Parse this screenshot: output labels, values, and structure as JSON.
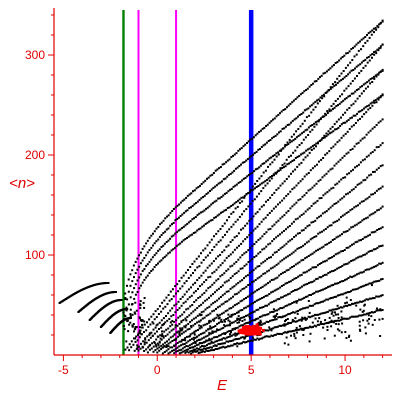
{
  "chart_data": {
    "type": "scatter",
    "title": "",
    "xlabel": "E",
    "ylabel": "<n>",
    "xlim": [
      -5.5,
      12.5
    ],
    "ylim": [
      0,
      345
    ],
    "x_ticks": [
      -5,
      0,
      5,
      10
    ],
    "y_ticks": [
      100,
      200,
      300
    ],
    "grid": false,
    "legend": "none",
    "colors": {
      "axis": "#e00000",
      "points": "#000000",
      "highlight_points": "#ff0000",
      "line_green": "#008000",
      "line_magenta": "#ff00ff",
      "line_blue": "#0000ff"
    },
    "vertical_lines": [
      {
        "x": -1.8,
        "color": "#008000",
        "style": "medium"
      },
      {
        "x": -1.0,
        "color": "#ff00ff",
        "style": "thin"
      },
      {
        "x": 1.0,
        "color": "#ff00ff",
        "style": "thin"
      },
      {
        "x": 5.0,
        "color": "#0000ff",
        "style": "thick"
      }
    ],
    "bands": [
      {
        "left": [
          -1.7,
          5.0
        ],
        "right": [
          12.0,
          334.0
        ]
      },
      {
        "left": [
          -1.5,
          5.0
        ],
        "right": [
          12.0,
          310.0
        ]
      },
      {
        "left": [
          -1.2,
          4.0
        ],
        "right": [
          12.0,
          285.0
        ]
      },
      {
        "left": [
          -1.0,
          4.0
        ],
        "right": [
          12.0,
          260.0
        ]
      },
      {
        "left": [
          -0.7,
          4.0
        ],
        "right": [
          12.0,
          236.0
        ]
      },
      {
        "left": [
          -0.5,
          3.0
        ],
        "right": [
          12.0,
          212.0
        ]
      },
      {
        "left": [
          -0.2,
          3.0
        ],
        "right": [
          12.0,
          190.0
        ]
      },
      {
        "left": [
          0.0,
          3.0
        ],
        "right": [
          12.0,
          168.0
        ]
      },
      {
        "left": [
          0.3,
          2.0
        ],
        "right": [
          12.0,
          148.0
        ]
      },
      {
        "left": [
          0.6,
          2.0
        ],
        "right": [
          12.0,
          128.0
        ]
      },
      {
        "left": [
          0.9,
          2.0
        ],
        "right": [
          12.0,
          110.0
        ]
      },
      {
        "left": [
          1.2,
          2.0
        ],
        "right": [
          12.0,
          92.0
        ]
      },
      {
        "left": [
          1.5,
          2.0
        ],
        "right": [
          12.0,
          76.0
        ]
      },
      {
        "left": [
          1.8,
          2.0
        ],
        "right": [
          12.0,
          60.0
        ]
      },
      {
        "left": [
          2.2,
          2.0
        ],
        "right": [
          12.0,
          45.0
        ]
      }
    ],
    "upper_curves": [
      {
        "start": [
          -1.8,
          42.0
        ],
        "mid": [
          1.0,
          148.0
        ],
        "end": [
          12.0,
          334.0
        ]
      },
      {
        "start": [
          -1.7,
          38.0
        ],
        "mid": [
          1.3,
          140.0
        ],
        "end": [
          12.0,
          310.0
        ]
      },
      {
        "start": [
          -1.6,
          34.0
        ],
        "mid": [
          1.5,
          130.0
        ],
        "end": [
          12.0,
          285.0
        ]
      },
      {
        "start": [
          -1.5,
          30.0
        ],
        "mid": [
          1.8,
          120.0
        ],
        "end": [
          12.0,
          260.0
        ]
      }
    ],
    "left_arcs": [
      {
        "x": [
          -5.2,
          -2.6
        ],
        "y": [
          52.0,
          72.0
        ]
      },
      {
        "x": [
          -4.2,
          -2.2
        ],
        "y": [
          43.0,
          63.0
        ]
      },
      {
        "x": [
          -3.6,
          -1.9
        ],
        "y": [
          35.0,
          55.0
        ]
      },
      {
        "x": [
          -3.0,
          -1.6
        ],
        "y": [
          28.0,
          46.0
        ]
      },
      {
        "x": [
          -2.5,
          -1.4
        ],
        "y": [
          22.0,
          37.0
        ]
      }
    ],
    "red_cluster": {
      "x_range": [
        3.3,
        7.2
      ],
      "y_range": [
        14.0,
        54.0
      ],
      "center": [
        5.0,
        22.0
      ]
    }
  }
}
